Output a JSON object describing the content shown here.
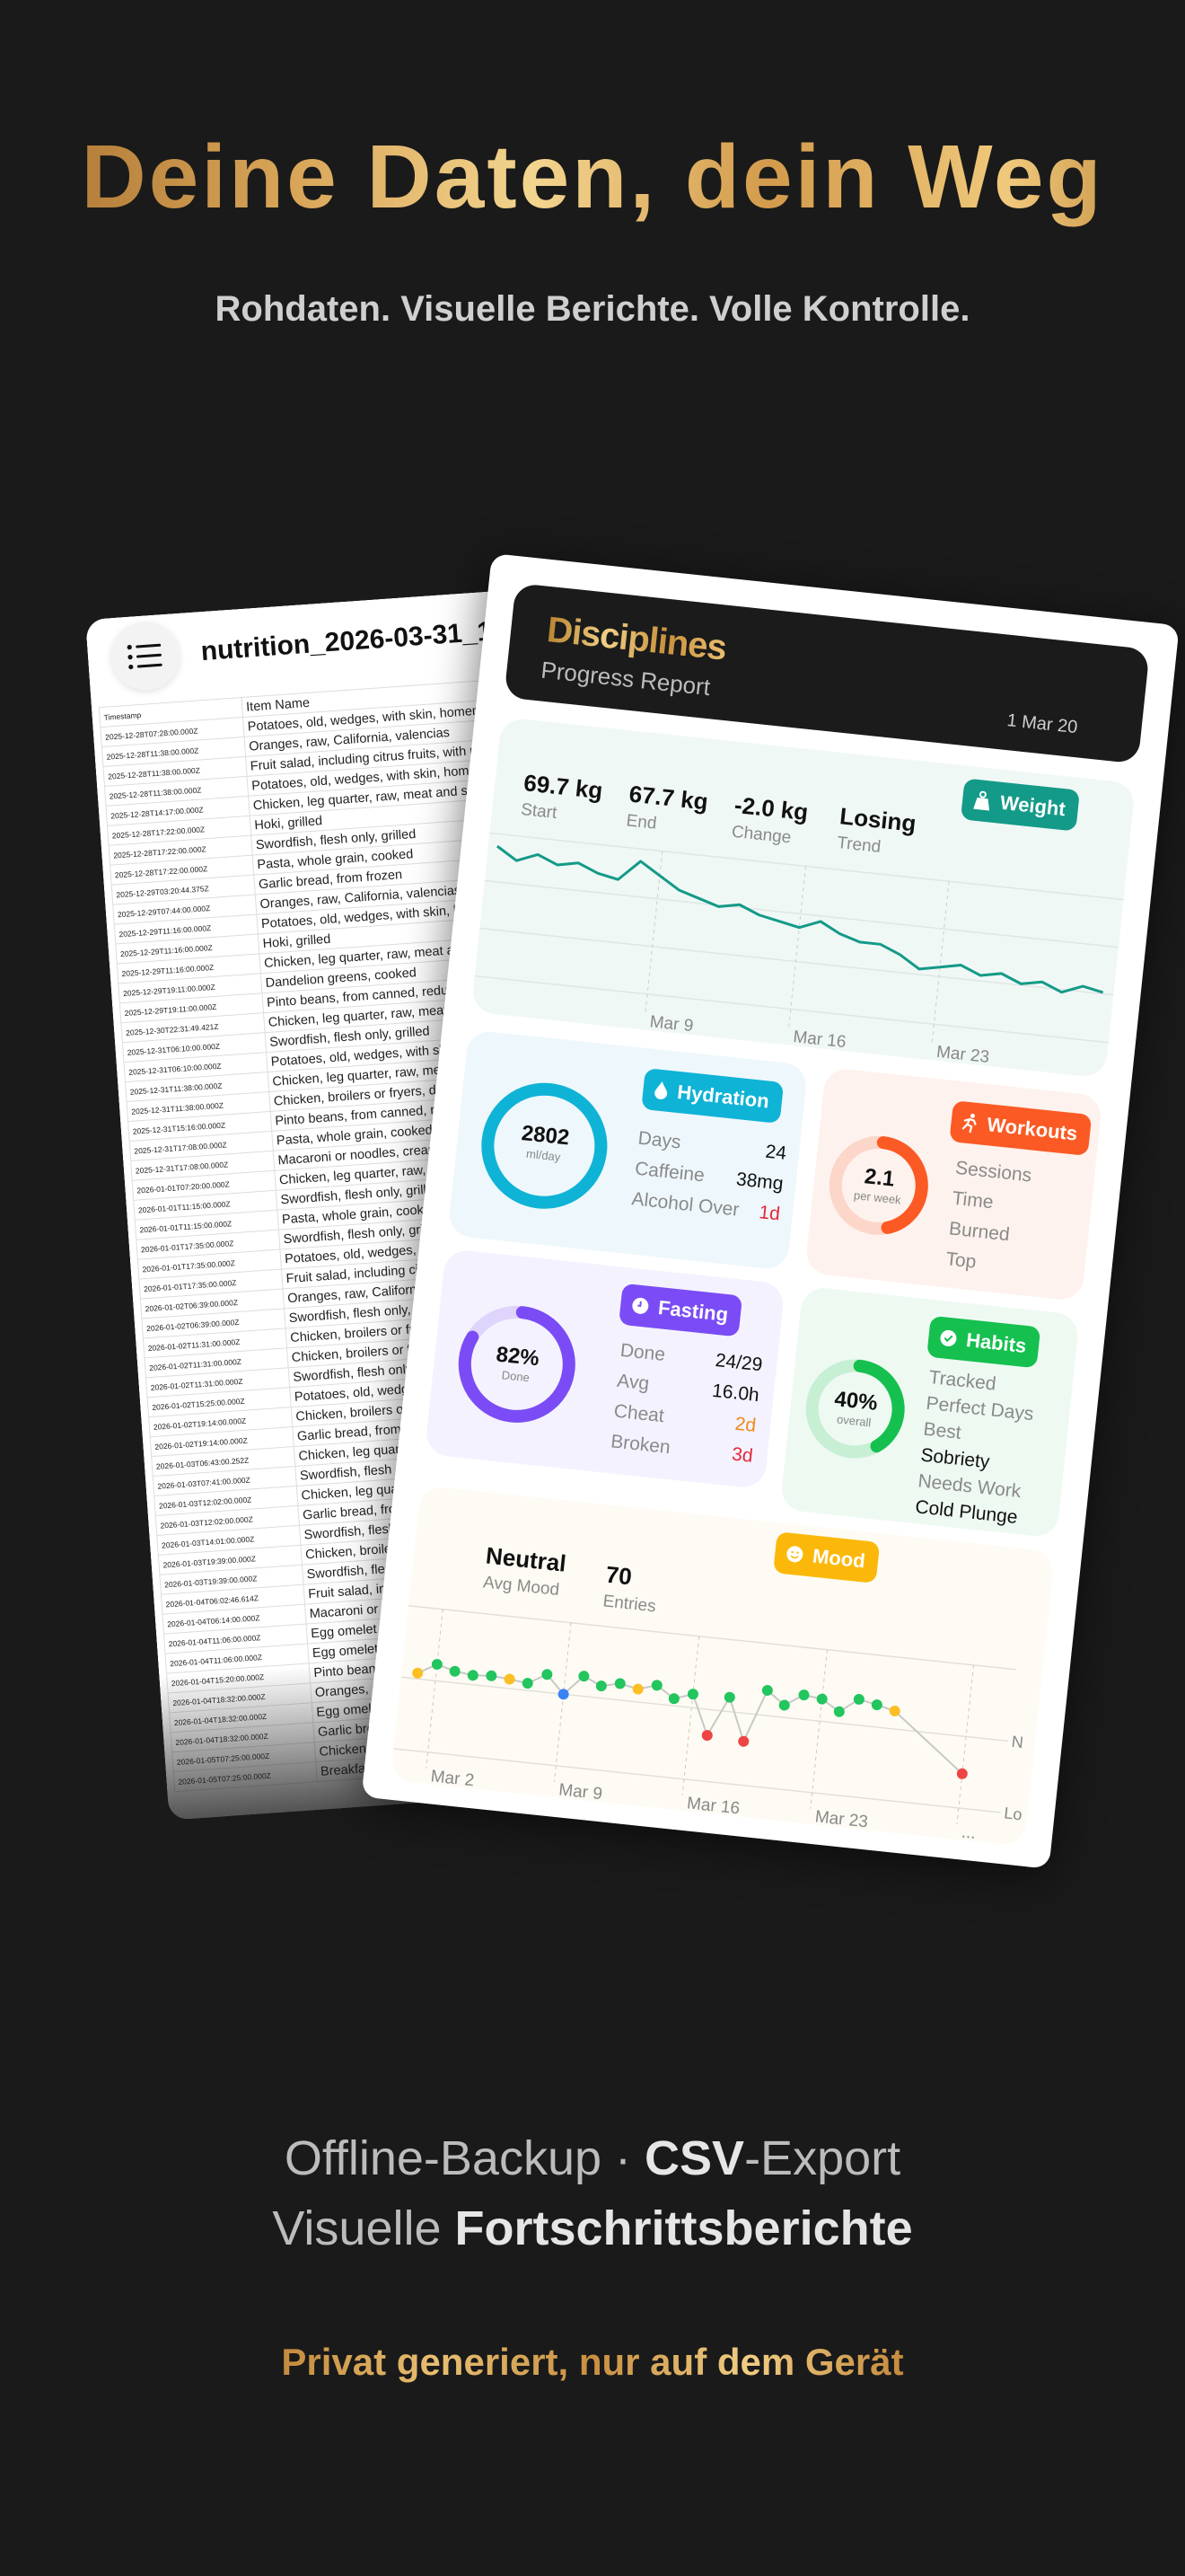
{
  "hero": {
    "title": "Deine Daten, dein Weg",
    "subtitle": "Rohdaten. Visuelle Berichte. Volle Kontrolle."
  },
  "csv_sheet": {
    "menu_icon": "list-icon",
    "title": "nutrition_2026-03-31_1",
    "columns": [
      "Timestamp",
      "Item Name"
    ],
    "rows": [
      [
        "2025-12-28T07:28:00.000Z",
        "Potatoes, old, wedges, with skin, homemade, cooked"
      ],
      [
        "2025-12-28T11:38:00.000Z",
        "Oranges, raw, California, valencias"
      ],
      [
        "2025-12-28T11:38:00.000Z",
        "Fruit salad, including citrus fruits, with marshmallow"
      ],
      [
        "2025-12-28T11:38:00.000Z",
        "Potatoes, old, wedges, with skin, homemade, cooked"
      ],
      [
        "2025-12-28T14:17:00.000Z",
        "Chicken, leg quarter, raw, meat and skin"
      ],
      [
        "2025-12-28T17:22:00.000Z",
        "Hoki, grilled"
      ],
      [
        "2025-12-28T17:22:00.000Z",
        "Swordfish, flesh only, grilled"
      ],
      [
        "2025-12-28T17:22:00.000Z",
        "Pasta, whole grain, cooked"
      ],
      [
        "2025-12-29T03:20:44.375Z",
        "Garlic bread, from frozen"
      ],
      [
        "2025-12-29T07:44:00.000Z",
        "Oranges, raw, California, valencias"
      ],
      [
        "2025-12-29T11:16:00.000Z",
        "Potatoes, old, wedges, with skin, homemade,"
      ],
      [
        "2025-12-29T11:16:00.000Z",
        "Hoki, grilled"
      ],
      [
        "2025-12-29T11:16:00.000Z",
        "Chicken, leg quarter, raw, meat and skin"
      ],
      [
        "2025-12-29T19:11:00.000Z",
        "Dandelion greens, cooked"
      ],
      [
        "2025-12-29T19:11:00.000Z",
        "Pinto beans, from canned, reduced sodium"
      ],
      [
        "2025-12-30T22:31:49.421Z",
        "Chicken, leg quarter, raw, meat and skin"
      ],
      [
        "2025-12-31T06:10:00.000Z",
        "Swordfish, flesh only, grilled"
      ],
      [
        "2025-12-31T06:10:00.000Z",
        "Potatoes, old, wedges, with skin, homem"
      ],
      [
        "2025-12-31T11:38:00.000Z",
        "Chicken, leg quarter, raw, meat and skin"
      ],
      [
        "2025-12-31T11:38:00.000Z",
        "Chicken, broilers or fryers, drumstick, r"
      ],
      [
        "2025-12-31T15:16:00.000Z",
        "Pinto beans, from canned, reduced soc"
      ],
      [
        "2025-12-31T17:08:00.000Z",
        "Pasta, whole grain, cooked"
      ],
      [
        "2025-12-31T17:08:00.000Z",
        "Macaroni or noodles, creamed, with c"
      ],
      [
        "2026-01-01T07:20:00.000Z",
        "Chicken, leg quarter, raw, meat and"
      ],
      [
        "2026-01-01T11:15:00.000Z",
        "Swordfish, flesh only, grilled"
      ],
      [
        "2026-01-01T11:15:00.000Z",
        "Pasta, whole grain, cooked"
      ],
      [
        "2026-01-01T17:35:00.000Z",
        "Swordfish, flesh only, grilled"
      ],
      [
        "2026-01-01T17:35:00.000Z",
        "Potatoes, old, wedges, with skin,"
      ],
      [
        "2026-01-01T17:35:00.000Z",
        "Fruit salad, including citrus fruits"
      ],
      [
        "2026-01-02T06:39:00.000Z",
        "Oranges, raw, California, valenci"
      ],
      [
        "2026-01-02T06:39:00.000Z",
        "Swordfish, flesh only, grilled"
      ],
      [
        "2026-01-02T11:31:00.000Z",
        "Chicken, broilers or fryers, dru"
      ],
      [
        "2026-01-02T11:31:00.000Z",
        "Chicken, broilers or fryers, dru"
      ],
      [
        "2026-01-02T11:31:00.000Z",
        "Swordfish, flesh only, grilled"
      ],
      [
        "2026-01-02T15:25:00.000Z",
        "Potatoes, old, wedges, with s"
      ],
      [
        "2026-01-02T19:14:00.000Z",
        "Chicken, broilers or fryers,"
      ],
      [
        "2026-01-02T19:14:00.000Z",
        "Garlic bread, from frozen"
      ],
      [
        "2026-01-03T06:43:00.252Z",
        "Chicken, leg quarter, raw,"
      ],
      [
        "2026-01-03T07:41:00.000Z",
        "Swordfish, flesh only, grill"
      ],
      [
        "2026-01-03T12:02:00.000Z",
        "Chicken, leg quarter, raw"
      ],
      [
        "2026-01-03T12:02:00.000Z",
        "Garlic bread, from frozen"
      ],
      [
        "2026-01-03T14:01:00.000Z",
        "Swordfish, flesh only, g"
      ],
      [
        "2026-01-03T19:39:00.000Z",
        "Chicken, broilers or fry"
      ],
      [
        "2026-01-03T19:39:00.000Z",
        "Swordfish, flesh only,"
      ],
      [
        "2026-01-04T06:02:46.614Z",
        "Fruit salad, including"
      ],
      [
        "2026-01-04T06:14:00.000Z",
        "Macaroni or noodles,"
      ],
      [
        "2026-01-04T11:06:00.000Z",
        "Egg omelet or scran"
      ],
      [
        "2026-01-04T11:06:00.000Z",
        "Egg omelet or scran"
      ],
      [
        "2026-01-04T15:20:00.000Z",
        "Pinto beans, from"
      ],
      [
        "2026-01-04T18:32:00.000Z",
        "Oranges, raw, Cal"
      ],
      [
        "2026-01-04T18:32:00.000Z",
        "Egg omelet or sc"
      ],
      [
        "2026-01-04T18:32:00.000Z",
        "Garlic bread, fro"
      ],
      [
        "2026-01-05T07:25:00.000Z",
        "Chicken, leg qu"
      ],
      [
        "2026-01-05T07:25:00.000Z",
        "Breakfast cereals,"
      ]
    ]
  },
  "report": {
    "brand": "Disciplines",
    "subtitle": "Progress Report",
    "date": "1 Mar 20",
    "weight": {
      "badge": "Weight",
      "icon": "weight-icon",
      "color": "#149a88",
      "stats": [
        {
          "value": "69.7 kg",
          "label": "Start"
        },
        {
          "value": "67.7 kg",
          "label": "End"
        },
        {
          "value": "-2.0 kg",
          "label": "Change"
        },
        {
          "value": "Losing",
          "label": "Trend"
        }
      ]
    },
    "hydration": {
      "badge": "Hydration",
      "icon": "water-drop-icon",
      "color": "#0fb3d6",
      "ring_value": "2802",
      "ring_unit": "ml/day",
      "ring_fraction": 1.0,
      "rows": [
        {
          "label": "Days",
          "value": "24"
        },
        {
          "label": "Caffeine",
          "value": "38mg"
        },
        {
          "label": "Alcohol Over",
          "value": "1d",
          "color": "#e5283a"
        }
      ]
    },
    "workouts": {
      "badge": "Workouts",
      "icon": "running-icon",
      "color": "#fb5a24",
      "ring_value": "2.1",
      "ring_unit": "per week",
      "ring_fraction": 0.45,
      "rows": [
        "Sessions",
        "Time",
        "Burned",
        "Top"
      ]
    },
    "fasting": {
      "badge": "Fasting",
      "icon": "clock-icon",
      "color": "#7b4cf5",
      "ring_value": "82%",
      "ring_unit": "Done",
      "ring_fraction": 0.82,
      "rows": [
        {
          "label": "Done",
          "value": "24/29"
        },
        {
          "label": "Avg",
          "value": "16.0h"
        },
        {
          "label": "Cheat",
          "value": "2d",
          "color": "#f08a1c"
        },
        {
          "label": "Broken",
          "value": "3d",
          "color": "#e5283a"
        }
      ]
    },
    "habits": {
      "badge": "Habits",
      "icon": "check-circle-icon",
      "color": "#15c04f",
      "ring_value": "40%",
      "ring_unit": "overall",
      "ring_fraction": 0.4,
      "rows": [
        {
          "label": "Tracked"
        },
        {
          "label": "Perfect Days"
        },
        {
          "label": "Best"
        },
        {
          "label": "Sobriety",
          "strong": true
        },
        {
          "label": "Needs Work"
        },
        {
          "label": "Cold Plunge",
          "strong": true
        }
      ]
    },
    "mood": {
      "badge": "Mood",
      "icon": "smiley-icon",
      "color": "#fbb80a",
      "stats": [
        {
          "value": "Neutral",
          "label": "Avg Mood"
        },
        {
          "value": "70",
          "label": "Entries"
        }
      ]
    }
  },
  "chart_data": [
    {
      "type": "line",
      "title": "",
      "series": [
        {
          "values": [
            69.7,
            69.4,
            69.6,
            69.4,
            69.5,
            69.3,
            69.2,
            69.7,
            69.4,
            69.1,
            68.95,
            68.8,
            68.9,
            68.7,
            68.6,
            68.5,
            68.7,
            68.45,
            68.3,
            68.3,
            68.1,
            67.8,
            67.9,
            68.0,
            67.8,
            67.9,
            67.7,
            67.8,
            67.6,
            67.8,
            67.7
          ]
        }
      ],
      "x": [
        "Mar 1",
        "Mar 2",
        "Mar 3",
        "Mar 4",
        "Mar 5",
        "Mar 6",
        "Mar 7",
        "Mar 8",
        "Mar 9",
        "Mar 10",
        "Mar 11",
        "Mar 12",
        "Mar 13",
        "Mar 14",
        "Mar 15",
        "Mar 16",
        "Mar 17",
        "Mar 18",
        "Mar 19",
        "Mar 20",
        "Mar 21",
        "Mar 22",
        "Mar 23",
        "Mar 24",
        "Mar 25",
        "Mar 26",
        "Mar 27",
        "Mar 28",
        "Mar 29",
        "Mar 30",
        "Mar 31"
      ],
      "x_ticks": [
        "Mar 9",
        "Mar 16",
        "Mar 23"
      ],
      "ylim": [
        66.5,
        70.0
      ],
      "grid": true,
      "color": "#149a88"
    },
    {
      "type": "line",
      "title": "",
      "x": [
        "Mar 1",
        "Mar 2",
        "Mar 3",
        "Mar 4",
        "Mar 5",
        "Mar 6",
        "Mar 7",
        "Mar 8",
        "Mar 9",
        "Mar 10",
        "Mar 11",
        "Mar 12",
        "Mar 13",
        "Mar 14",
        "Mar 15",
        "Mar 16",
        "Mar 17",
        "Mar 18",
        "Mar 19",
        "Mar 20",
        "Mar 21",
        "Mar 22",
        "Mar 23",
        "Mar 24",
        "Mar 25",
        "Mar 26",
        "Mar 27",
        "Mar 31"
      ],
      "series": [
        {
          "values": [
            2.08,
            2.23,
            2.16,
            2.13,
            2.15,
            2.13,
            2.1,
            2.25,
            2.0,
            2.28,
            2.17,
            2.23,
            2.18,
            2.26,
            2.1,
            2.19,
            1.64,
            2.2,
            1.61,
            2.35,
            2.17,
            2.34,
            2.31,
            2.16,
            2.36,
            2.31,
            2.25,
            1.48
          ]
        }
      ],
      "point_colors": [
        "#fbbf24",
        "#22c55e",
        "#22c55e",
        "#22c55e",
        "#22c55e",
        "#fbbf24",
        "#22c55e",
        "#22c55e",
        "#3b82f6",
        "#22c55e",
        "#22c55e",
        "#22c55e",
        "#fbbf24",
        "#22c55e",
        "#22c55e",
        "#22c55e",
        "#ef4444",
        "#22c55e",
        "#ef4444",
        "#22c55e",
        "#22c55e",
        "#22c55e",
        "#22c55e",
        "#22c55e",
        "#22c55e",
        "#22c55e",
        "#fbbf24",
        "#ef4444"
      ],
      "x_ticks": [
        "Mar 2",
        "Mar 9",
        "Mar 16",
        "Mar 23",
        "..."
      ],
      "y_tick_labels": [
        "N",
        "Lo"
      ],
      "ylim": [
        1,
        3
      ],
      "grid": true,
      "line_color": "#c8c8c8"
    }
  ],
  "footer": {
    "line1_a": "Offline-Backup · ",
    "line1_b": "CSV",
    "line1_c": "-Export",
    "line2_a": "Visuelle ",
    "line2_b": "Fortschrittsberichte",
    "tagline": "Privat generiert, nur auf dem Gerät"
  }
}
